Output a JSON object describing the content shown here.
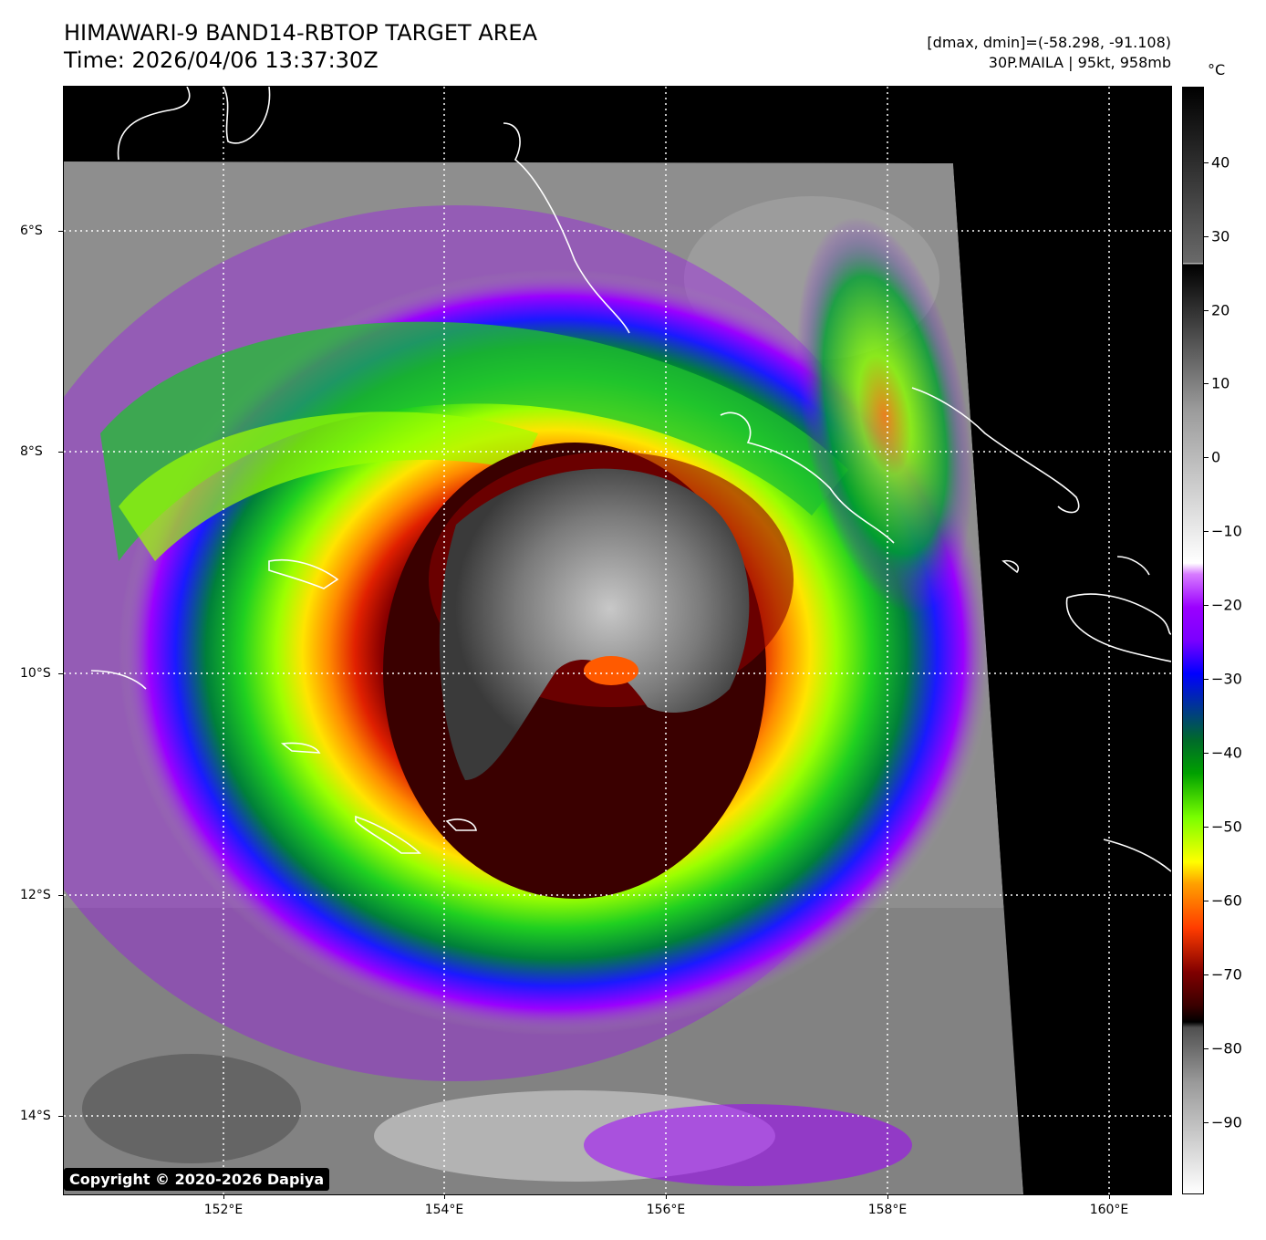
{
  "header": {
    "title_line1": "HIMAWARI-9 BAND14-RBTOP TARGET AREA",
    "title_line2": "Time: 2026/04/06 13:37:30Z",
    "range_text": "[dmax, dmin]=(-58.298, -91.108)",
    "storm_text": "30P.MAILA | 95kt, 958mb"
  },
  "colorbar": {
    "unit": "°C",
    "tick_labels": [
      "40",
      "30",
      "20",
      "10",
      "0",
      "−10",
      "−20",
      "−30",
      "−40",
      "−50",
      "−60",
      "−70",
      "−80",
      "−90"
    ]
  },
  "axes": {
    "lat_labels": [
      "6°S",
      "8°S",
      "10°S",
      "12°S",
      "14°S"
    ],
    "lon_labels": [
      "152°E",
      "154°E",
      "156°E",
      "158°E",
      "160°E"
    ]
  },
  "storm": {
    "name": "30P.MAILA",
    "intensity_kt": 95,
    "pressure_mb": 958
  },
  "colors": {
    "background": "#000000",
    "gridline": "#ffffff",
    "coastline": "#ffffff",
    "eye_core": "#3a0000",
    "eyewall": "#b01000",
    "inner_band": "#ff7a00",
    "mid_band": "#8aff00",
    "outer_band": "#00b030",
    "outer_purple": "#a000ff",
    "clouds": "#9a9a9a"
  },
  "copyright": "Copyright © 2020-2026 Dapiya"
}
